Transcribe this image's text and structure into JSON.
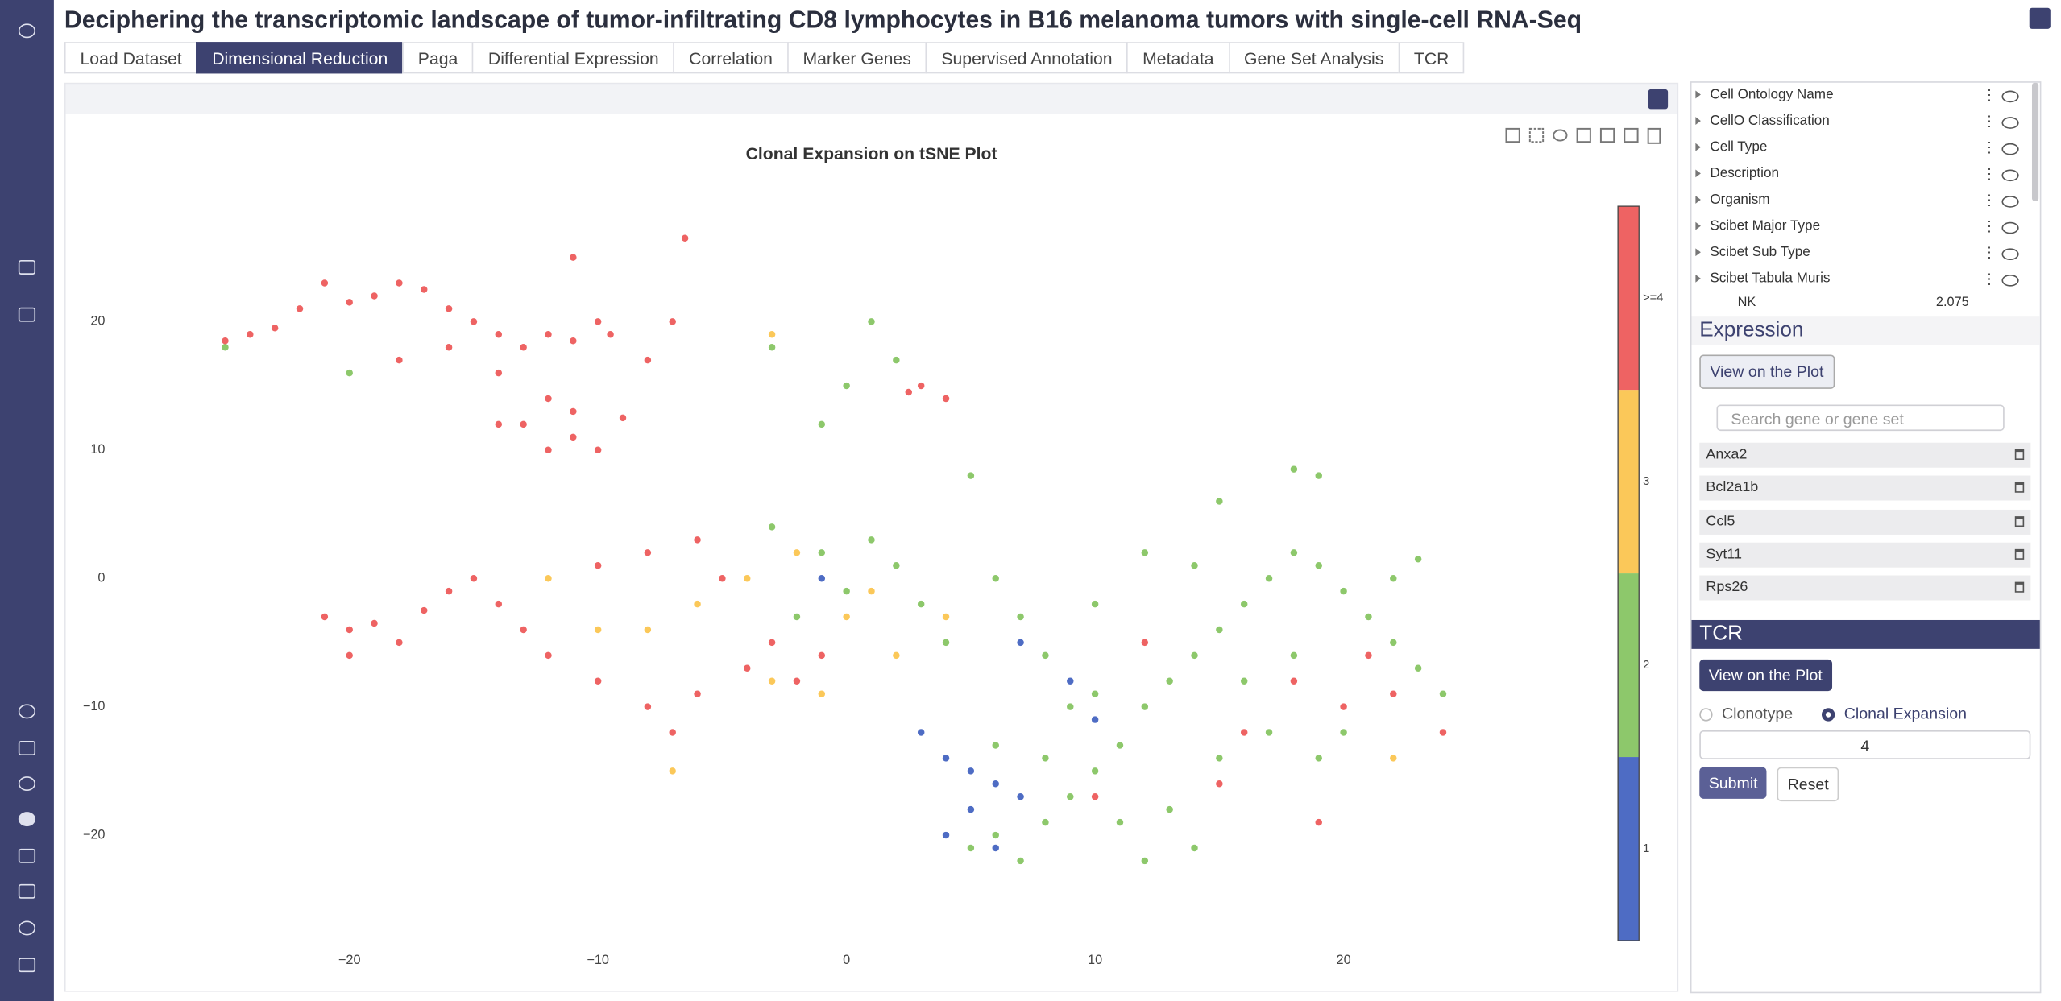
{
  "header": {
    "title": "Deciphering the transcriptomic landscape of tumor-infiltrating CD8 lymphocytes in B16 melanoma tumors with single-cell RNA-Seq"
  },
  "tabs": {
    "items": [
      "Load Dataset",
      "Dimensional Reduction",
      "Paga",
      "Differential Expression",
      "Correlation",
      "Marker Genes",
      "Supervised Annotation",
      "Metadata",
      "Gene Set Analysis",
      "TCR"
    ],
    "active": 1
  },
  "chart_data": {
    "type": "scatter",
    "title": "Clonal Expansion on tSNE Plot",
    "xlim": [
      -29.3,
      29.4
    ],
    "ylim": [
      -27.6,
      29.7
    ],
    "xticks": [
      {
        "value": -20,
        "label": "−20"
      },
      {
        "value": -10,
        "label": "−10"
      },
      0,
      10,
      20
    ],
    "yticks": [
      {
        "value": -20,
        "label": "−20"
      },
      {
        "value": -10,
        "label": "−10"
      },
      0,
      10,
      20
    ],
    "grid": false,
    "series": [
      {
        "name": "1",
        "color": "#4e6cc4",
        "x": [
          4,
          5,
          6,
          7,
          5,
          4,
          6,
          3,
          9,
          10,
          -1,
          7
        ],
        "values": [
          -14,
          -15,
          -16,
          -17,
          -18,
          -20,
          -21,
          -12,
          -8,
          -11,
          0,
          -5
        ]
      },
      {
        "name": "2",
        "color": "#8dc86b",
        "x": [
          5,
          6,
          7,
          8,
          9,
          10,
          11,
          12,
          13,
          14,
          15,
          16,
          17,
          18,
          19,
          20,
          21,
          22,
          23,
          24,
          11,
          13,
          15,
          17,
          19,
          9,
          8,
          7,
          6,
          4,
          3,
          2,
          1,
          0,
          -1,
          -3,
          -2,
          10,
          12,
          14,
          16,
          18,
          20,
          22,
          10,
          6,
          8,
          12,
          14,
          -1,
          0,
          1,
          2,
          -3,
          -25,
          -20,
          19,
          18,
          23,
          15,
          5
        ],
        "values": [
          -21,
          -20,
          -22,
          -19,
          -17,
          -15,
          -13,
          -10,
          -8,
          -6,
          -4,
          -2,
          0,
          2,
          1,
          -1,
          -3,
          -5,
          -7,
          -9,
          -19,
          -18,
          -14,
          -12,
          -14,
          -10,
          -6,
          -3,
          0,
          -5,
          -2,
          1,
          3,
          -1,
          2,
          4,
          -3,
          -2,
          2,
          1,
          -8,
          -6,
          -12,
          0,
          -9,
          -13,
          -14,
          -22,
          -21,
          12,
          15,
          20,
          17,
          18,
          18,
          16,
          8,
          8.5,
          1.5,
          6,
          8
        ]
      },
      {
        "name": "3",
        "color": "#fbc859",
        "x": [
          -4,
          -6,
          -2,
          -8,
          0,
          2,
          -3,
          4,
          -10,
          -1,
          -12,
          1,
          -3,
          -7,
          22
        ],
        "values": [
          0,
          -2,
          2,
          -4,
          -3,
          -6,
          -8,
          -3,
          -4,
          -9,
          0,
          -1,
          19,
          -15,
          -14
        ]
      },
      {
        "name": ">=4",
        "color": "#ee6363",
        "x": [
          -24,
          -25,
          -23,
          -22,
          -20,
          -19,
          -18,
          -17,
          -16,
          -15,
          -14,
          -13,
          -12,
          -11,
          -10,
          -9.5,
          -18,
          -16,
          -14,
          -12,
          -13,
          -11,
          -10,
          -12,
          -14,
          -11,
          -9,
          -8,
          -7,
          -11,
          -6.5,
          3,
          4,
          2.5,
          -21,
          -21,
          -20,
          -19,
          -18,
          -17,
          -20,
          -16,
          -15,
          -14,
          -13,
          -12,
          -10,
          -8,
          -7,
          -6,
          -4,
          -3,
          -10,
          -8,
          -6,
          -5,
          -2,
          -1,
          18,
          20,
          21,
          22,
          15,
          16,
          12,
          24,
          10,
          19
        ],
        "values": [
          19,
          18.5,
          19.5,
          21,
          21.5,
          22,
          23,
          22.5,
          21,
          20,
          19,
          18,
          19,
          18.5,
          20,
          19,
          17,
          18,
          16,
          14,
          12,
          11,
          10,
          10,
          12,
          13,
          12.5,
          17,
          20,
          25,
          26.5,
          15,
          14,
          14.5,
          23,
          -3,
          -4,
          -3.5,
          -5,
          -2.5,
          -6,
          -1,
          0,
          -2,
          -4,
          -6,
          -8,
          -10,
          -12,
          -9,
          -7,
          -5,
          1,
          2,
          3,
          0,
          -8,
          -6,
          -8,
          -10,
          -6,
          -9,
          -16,
          -12,
          -5,
          -12,
          -17,
          -19
        ]
      }
    ]
  },
  "annotations": {
    "items": [
      "Cell Ontology Name",
      "CellO Classification",
      "Cell Type",
      "Description",
      "Organism",
      "Scibet Major Type",
      "Scibet Sub Type",
      "Scibet Tabula Muris"
    ],
    "sub_label": "NK",
    "sub_value": "2.075"
  },
  "expression": {
    "title": "Expression",
    "button": "View on the Plot",
    "search_placeholder": "Search gene or gene set",
    "genes": [
      "Anxa2",
      "Bcl2a1b",
      "Ccl5",
      "Syt11",
      "Rps26"
    ]
  },
  "tcr": {
    "title": "TCR",
    "button": "View on the Plot",
    "options": [
      "Clonotype",
      "Clonal Expansion"
    ],
    "selected": 1,
    "input": "4",
    "submit": "Submit",
    "reset": "Reset"
  }
}
